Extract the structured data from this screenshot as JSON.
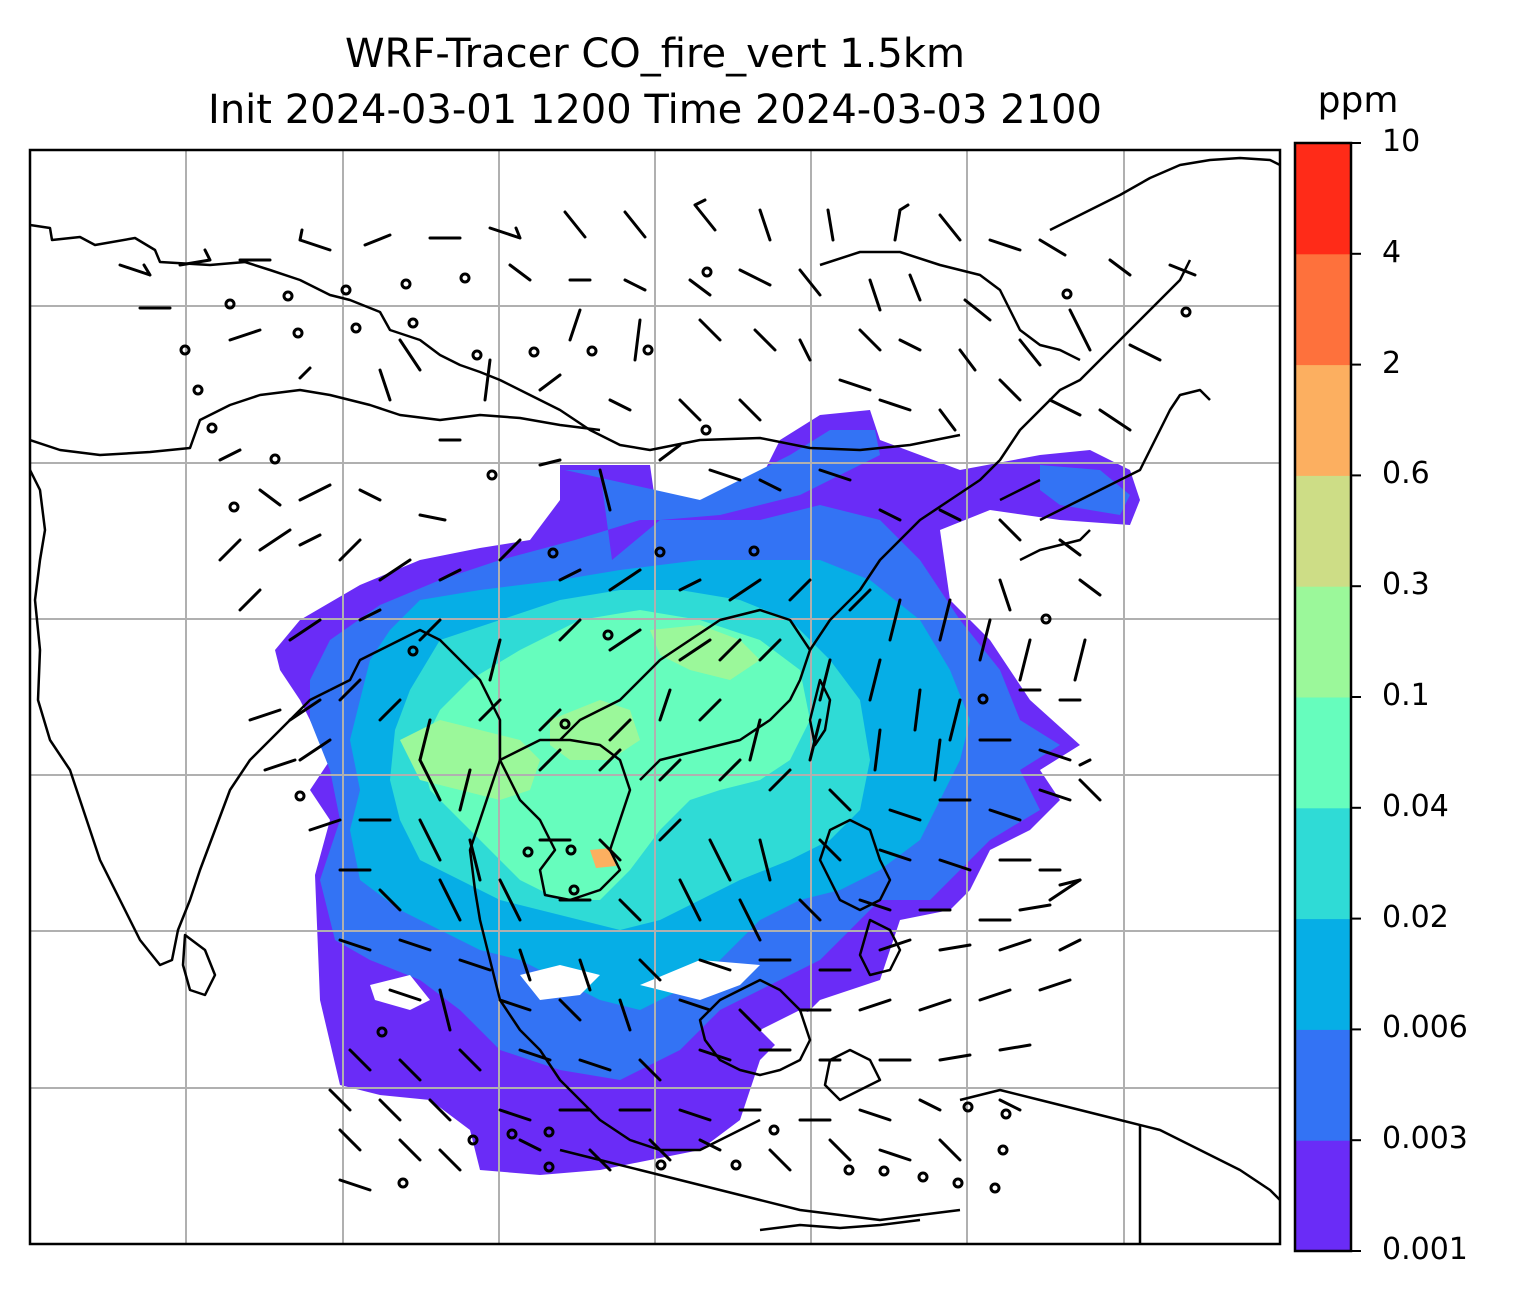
{
  "title": {
    "line1": "WRF-Tracer CO_fire_vert 1.5km",
    "line2": "Init 2024-03-01 1200 Time 2024-03-03 2100"
  },
  "colorbar": {
    "unit": "ppm",
    "levels": [
      "0.001",
      "0.003",
      "0.006",
      "0.02",
      "0.04",
      "0.1",
      "0.3",
      "0.6",
      "2",
      "4",
      "10"
    ],
    "colors": [
      "#6a2cf7",
      "#3373f4",
      "#06aee6",
      "#2fdbd6",
      "#66fdbd",
      "#9bf89a",
      "#cddd86",
      "#fcaf60",
      "#fe713c",
      "#ff2b18"
    ]
  },
  "map": {
    "land_outline_color": "#000000",
    "gridline_color": "#b0b0b0",
    "wind_barb_color": "#000000"
  }
}
